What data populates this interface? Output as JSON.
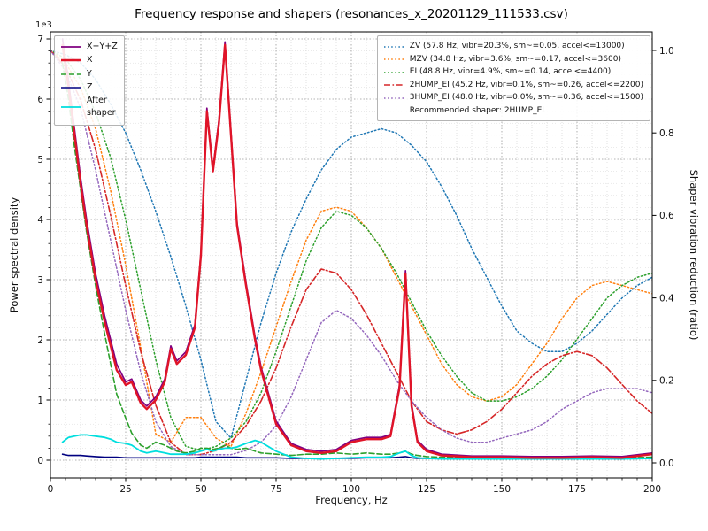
{
  "chart_data": {
    "type": "line",
    "title": "Frequency response and shapers (resonances_x_20201129_111533.csv)",
    "xlabel": "Frequency, Hz",
    "ylabel_left": "Power spectral density",
    "ylabel_right": "Shaper vibration reduction (ratio)",
    "left_axis_offset_text": "1e3",
    "xlim": [
      0,
      200
    ],
    "left_ylim": [
      0,
      7000
    ],
    "right_ylim": [
      0,
      1.0
    ],
    "grid": "major and minor, dotted gray",
    "x_ticks": {
      "values": [
        0,
        25,
        50,
        75,
        100,
        125,
        150,
        175,
        200
      ],
      "labels": [
        "0",
        "25",
        "50",
        "75",
        "100",
        "125",
        "150",
        "175",
        "200"
      ],
      "minor_step": 5
    },
    "left_ticks": {
      "values": [
        0,
        1000,
        2000,
        3000,
        4000,
        5000,
        6000,
        7000
      ],
      "labels": [
        "0",
        "1",
        "2",
        "3",
        "4",
        "5",
        "6",
        "7"
      ],
      "minor_step": 200
    },
    "right_ticks": {
      "values": [
        0,
        0.2,
        0.4,
        0.6,
        0.8,
        1.0
      ],
      "labels": [
        "0.0",
        "0.2",
        "0.4",
        "0.6",
        "0.8",
        "1.0"
      ]
    },
    "psd_x": [
      4,
      6,
      8,
      10,
      12,
      15,
      18,
      20,
      22,
      25,
      27,
      30,
      32,
      35,
      38,
      40,
      42,
      45,
      48,
      50,
      52,
      54,
      56,
      58,
      60,
      62,
      65,
      68,
      70,
      75,
      80,
      85,
      90,
      95,
      100,
      105,
      110,
      113,
      116,
      118,
      120,
      122,
      125,
      130,
      140,
      150,
      160,
      170,
      180,
      190,
      200
    ],
    "psd_series": [
      {
        "name": "Y",
        "color": "#2ca02c",
        "style": "dashed",
        "width": 1.6,
        "values": [
          6600,
          6000,
          5200,
          4500,
          3800,
          2900,
          2100,
          1600,
          1100,
          700,
          450,
          250,
          200,
          300,
          250,
          200,
          150,
          120,
          150,
          200,
          200,
          180,
          200,
          250,
          200,
          180,
          200,
          150,
          120,
          100,
          80,
          100,
          100,
          120,
          100,
          120,
          100,
          100,
          120,
          150,
          100,
          80,
          60,
          50,
          50,
          40,
          40,
          40,
          50,
          40,
          50
        ]
      },
      {
        "name": "Z",
        "color": "#000080",
        "style": "solid",
        "width": 1.6,
        "values": [
          100,
          80,
          80,
          80,
          70,
          60,
          50,
          50,
          50,
          40,
          40,
          40,
          40,
          40,
          40,
          40,
          40,
          40,
          40,
          50,
          50,
          50,
          50,
          50,
          50,
          50,
          40,
          40,
          40,
          40,
          30,
          30,
          30,
          30,
          30,
          40,
          40,
          40,
          50,
          60,
          40,
          30,
          30,
          30,
          30,
          30,
          30,
          30,
          30,
          30,
          30
        ]
      },
      {
        "name": "After shaper",
        "color": "#00dede",
        "style": "solid",
        "width": 1.8,
        "values": [
          300,
          380,
          400,
          420,
          420,
          400,
          380,
          350,
          300,
          280,
          250,
          150,
          120,
          150,
          120,
          100,
          100,
          100,
          120,
          150,
          180,
          150,
          180,
          200,
          200,
          220,
          280,
          330,
          300,
          150,
          50,
          30,
          20,
          30,
          40,
          50,
          50,
          60,
          120,
          150,
          80,
          40,
          30,
          20,
          20,
          20,
          20,
          20,
          20,
          20,
          30
        ]
      },
      {
        "name": "X+Y+Z",
        "color": "#800080",
        "style": "solid",
        "width": 1.7,
        "values": [
          7000,
          6300,
          5500,
          4700,
          4000,
          3100,
          2400,
          2000,
          1600,
          1300,
          1350,
          1000,
          900,
          1050,
          1350,
          1900,
          1650,
          1800,
          2250,
          3450,
          5850,
          4850,
          5650,
          6950,
          5450,
          3950,
          2950,
          2050,
          1550,
          650,
          280,
          180,
          150,
          180,
          330,
          380,
          380,
          430,
          1250,
          3150,
          950,
          330,
          180,
          100,
          70,
          70,
          60,
          60,
          70,
          60,
          120
        ]
      },
      {
        "name": "X",
        "color": "#e01428",
        "style": "solid",
        "width": 2.4,
        "values": [
          6900,
          6200,
          5400,
          4600,
          3900,
          3000,
          2300,
          1900,
          1500,
          1250,
          1300,
          950,
          850,
          1000,
          1300,
          1850,
          1600,
          1750,
          2200,
          3400,
          5800,
          4800,
          5600,
          6900,
          5400,
          3900,
          2900,
          2000,
          1500,
          600,
          250,
          150,
          120,
          150,
          300,
          350,
          350,
          400,
          1200,
          3100,
          900,
          300,
          150,
          80,
          50,
          50,
          40,
          40,
          50,
          40,
          100
        ]
      }
    ],
    "shaper_x": [
      0,
      5,
      10,
      15,
      20,
      25,
      30,
      35,
      40,
      45,
      50,
      55,
      60,
      65,
      70,
      75,
      80,
      85,
      90,
      95,
      100,
      105,
      110,
      115,
      120,
      125,
      130,
      135,
      140,
      145,
      150,
      155,
      160,
      165,
      170,
      175,
      180,
      185,
      190,
      195,
      200
    ],
    "shaper_series": [
      {
        "name": "ZV",
        "color": "#1f77b4",
        "style": "dotted",
        "width": 1.5,
        "values": [
          1.0,
          0.99,
          0.97,
          0.93,
          0.87,
          0.8,
          0.71,
          0.61,
          0.5,
          0.38,
          0.25,
          0.1,
          0.06,
          0.2,
          0.34,
          0.46,
          0.56,
          0.64,
          0.71,
          0.76,
          0.79,
          0.8,
          0.81,
          0.8,
          0.77,
          0.73,
          0.67,
          0.6,
          0.52,
          0.45,
          0.38,
          0.32,
          0.29,
          0.27,
          0.27,
          0.29,
          0.32,
          0.36,
          0.4,
          0.43,
          0.45
        ]
      },
      {
        "name": "MZV",
        "color": "#ff7f0e",
        "style": "dotted",
        "width": 1.5,
        "values": [
          1.0,
          0.97,
          0.91,
          0.81,
          0.66,
          0.48,
          0.28,
          0.07,
          0.05,
          0.11,
          0.11,
          0.06,
          0.04,
          0.12,
          0.22,
          0.33,
          0.44,
          0.54,
          0.61,
          0.62,
          0.61,
          0.57,
          0.52,
          0.45,
          0.38,
          0.31,
          0.24,
          0.19,
          0.16,
          0.15,
          0.16,
          0.19,
          0.24,
          0.29,
          0.35,
          0.4,
          0.43,
          0.44,
          0.43,
          0.42,
          0.41
        ]
      },
      {
        "name": "EI",
        "color": "#2ca02c",
        "style": "dotted",
        "width": 1.5,
        "values": [
          1.0,
          0.98,
          0.93,
          0.85,
          0.74,
          0.59,
          0.42,
          0.25,
          0.11,
          0.04,
          0.03,
          0.04,
          0.06,
          0.1,
          0.17,
          0.27,
          0.38,
          0.49,
          0.57,
          0.61,
          0.6,
          0.57,
          0.52,
          0.46,
          0.39,
          0.32,
          0.26,
          0.21,
          0.17,
          0.15,
          0.15,
          0.16,
          0.18,
          0.21,
          0.25,
          0.3,
          0.35,
          0.4,
          0.43,
          0.45,
          0.46
        ]
      },
      {
        "name": "2HUMP_EI",
        "color": "#d62728",
        "style": "dashdot",
        "width": 1.6,
        "values": [
          1.0,
          0.96,
          0.88,
          0.76,
          0.6,
          0.43,
          0.27,
          0.14,
          0.05,
          0.02,
          0.02,
          0.03,
          0.05,
          0.09,
          0.15,
          0.23,
          0.33,
          0.42,
          0.47,
          0.46,
          0.42,
          0.36,
          0.29,
          0.22,
          0.15,
          0.1,
          0.08,
          0.07,
          0.08,
          0.1,
          0.13,
          0.17,
          0.21,
          0.24,
          0.26,
          0.27,
          0.26,
          0.23,
          0.19,
          0.15,
          0.12
        ]
      },
      {
        "name": "3HUMP_EI",
        "color": "#9467bd",
        "style": "dotted",
        "width": 1.5,
        "values": [
          1.0,
          0.95,
          0.86,
          0.71,
          0.54,
          0.37,
          0.22,
          0.1,
          0.04,
          0.02,
          0.02,
          0.02,
          0.02,
          0.03,
          0.05,
          0.09,
          0.16,
          0.25,
          0.34,
          0.37,
          0.35,
          0.31,
          0.26,
          0.2,
          0.15,
          0.11,
          0.08,
          0.06,
          0.05,
          0.05,
          0.06,
          0.07,
          0.08,
          0.1,
          0.13,
          0.15,
          0.17,
          0.18,
          0.18,
          0.18,
          0.17
        ]
      }
    ],
    "legend_traces": {
      "items": [
        {
          "label": "X+Y+Z",
          "color": "#800080",
          "style": "solid",
          "width": 1.7
        },
        {
          "label": "X",
          "color": "#e01428",
          "style": "solid",
          "width": 2.4
        },
        {
          "label": "Y",
          "color": "#2ca02c",
          "style": "dashed",
          "width": 1.6
        },
        {
          "label": "Z",
          "color": "#000080",
          "style": "solid",
          "width": 1.6
        },
        {
          "label": "After\nshaper",
          "color": "#00dede",
          "style": "solid",
          "width": 1.8
        }
      ]
    },
    "legend_shapers": {
      "items": [
        {
          "label": "ZV (57.8 Hz, vibr=20.3%, sm~=0.05, accel<=13000)",
          "color": "#1f77b4",
          "style": "dotted",
          "width": 1.5
        },
        {
          "label": "MZV (34.8 Hz, vibr=3.6%, sm~=0.17, accel<=3600)",
          "color": "#ff7f0e",
          "style": "dotted",
          "width": 1.5
        },
        {
          "label": "EI (48.8 Hz, vibr=4.9%, sm~=0.14, accel<=4400)",
          "color": "#2ca02c",
          "style": "dotted",
          "width": 1.5
        },
        {
          "label": "2HUMP_EI (45.2 Hz, vibr=0.1%, sm~=0.26, accel<=2200)",
          "color": "#d62728",
          "style": "dashdot",
          "width": 1.6
        },
        {
          "label": "3HUMP_EI (48.0 Hz, vibr=0.0%, sm~=0.36, accel<=1500)",
          "color": "#9467bd",
          "style": "dotted",
          "width": 1.5
        }
      ],
      "note": "Recommended shaper: 2HUMP_EI"
    }
  }
}
